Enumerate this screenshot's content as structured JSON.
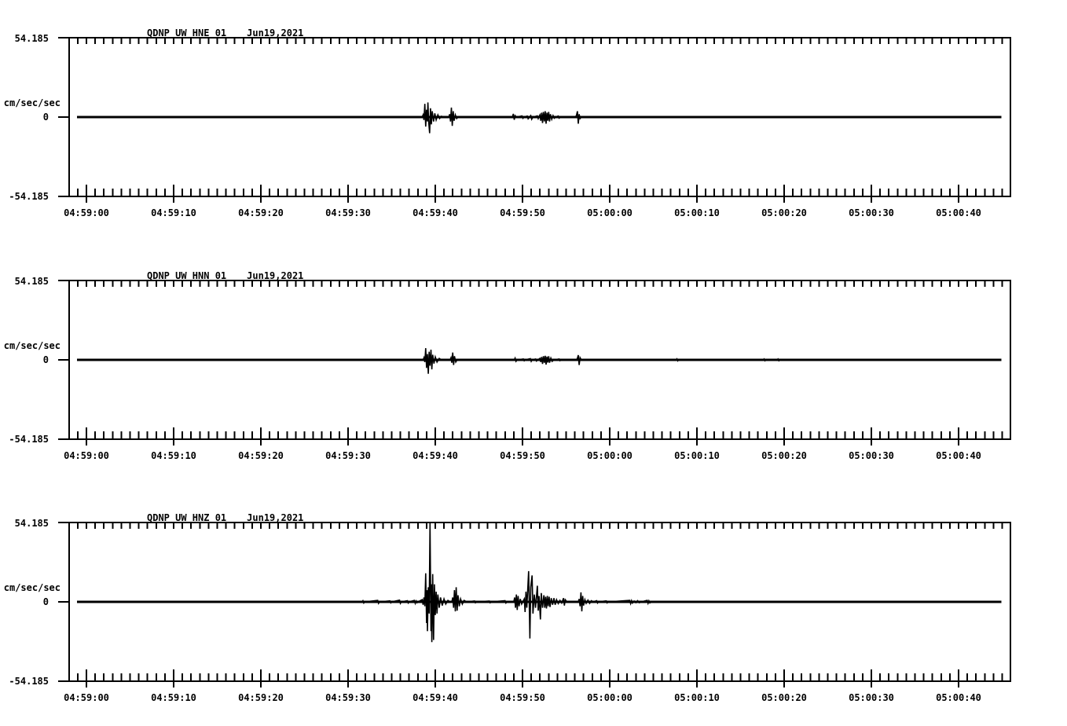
{
  "page": {
    "background": "#ffffff",
    "foreground": "#000000"
  },
  "chart_data": [
    {
      "type": "line",
      "station_channel": "QDNP_UW_HNE_01",
      "date": "Jun19,2021",
      "ylabel": "cm/sec/sec",
      "ymax_label": "54.185",
      "yzero_label": "0",
      "ymin_label": "-54.185",
      "ylim": [
        -54.185,
        54.185
      ],
      "xlim_seconds": [
        -1.98,
        105.9
      ],
      "minor_tick_seconds": 1,
      "xticks": [
        {
          "t": 0,
          "label": "04:59:00"
        },
        {
          "t": 10,
          "label": "04:59:10"
        },
        {
          "t": 20,
          "label": "04:59:20"
        },
        {
          "t": 30,
          "label": "04:59:30"
        },
        {
          "t": 40,
          "label": "04:59:40"
        },
        {
          "t": 50,
          "label": "04:59:50"
        },
        {
          "t": 60,
          "label": "05:00:00"
        },
        {
          "t": 70,
          "label": "05:00:10"
        },
        {
          "t": 80,
          "label": "05:00:20"
        },
        {
          "t": 90,
          "label": "05:00:30"
        },
        {
          "t": 100,
          "label": "05:00:40"
        }
      ],
      "series": [
        [
          -1.08,
          0
        ],
        [
          38.5,
          0
        ],
        [
          38.6,
          1.5
        ],
        [
          38.7,
          -2
        ],
        [
          38.8,
          9
        ],
        [
          38.9,
          -6.5
        ],
        [
          39.0,
          5
        ],
        [
          39.1,
          -3
        ],
        [
          39.15,
          10
        ],
        [
          39.25,
          -4
        ],
        [
          39.35,
          -11
        ],
        [
          39.45,
          6
        ],
        [
          39.55,
          -5
        ],
        [
          39.65,
          4
        ],
        [
          39.8,
          -3
        ],
        [
          39.95,
          2.5
        ],
        [
          40.1,
          -2
        ],
        [
          40.3,
          1.5
        ],
        [
          40.5,
          -1
        ],
        [
          40.7,
          0.6
        ],
        [
          41.0,
          0
        ],
        [
          41.55,
          0
        ],
        [
          41.65,
          2
        ],
        [
          41.75,
          -3
        ],
        [
          41.85,
          6.5
        ],
        [
          41.95,
          -6
        ],
        [
          42.05,
          4
        ],
        [
          42.15,
          -2.5
        ],
        [
          42.3,
          1.5
        ],
        [
          42.45,
          -1
        ],
        [
          42.6,
          0
        ],
        [
          48.85,
          0
        ],
        [
          48.95,
          2.2
        ],
        [
          49.05,
          -1.8
        ],
        [
          49.15,
          1
        ],
        [
          49.3,
          0
        ],
        [
          49.95,
          0.8
        ],
        [
          50.05,
          -0.8
        ],
        [
          50.15,
          0
        ],
        [
          50.55,
          0.7
        ],
        [
          50.65,
          -1.2
        ],
        [
          50.8,
          0
        ],
        [
          50.95,
          1
        ],
        [
          51.05,
          -1.5
        ],
        [
          51.2,
          0
        ],
        [
          51.7,
          0.8
        ],
        [
          51.8,
          -1
        ],
        [
          51.9,
          0.5
        ],
        [
          52.0,
          1.5
        ],
        [
          52.1,
          -2.5
        ],
        [
          52.2,
          3
        ],
        [
          52.3,
          -4
        ],
        [
          52.4,
          3.5
        ],
        [
          52.5,
          -3
        ],
        [
          52.6,
          4
        ],
        [
          52.7,
          -4.5
        ],
        [
          52.8,
          3
        ],
        [
          52.9,
          -2.5
        ],
        [
          53.0,
          3.5
        ],
        [
          53.1,
          -3
        ],
        [
          53.2,
          2
        ],
        [
          53.35,
          -1.5
        ],
        [
          53.5,
          1
        ],
        [
          53.65,
          -0.8
        ],
        [
          53.8,
          0
        ],
        [
          54.1,
          0.7
        ],
        [
          54.2,
          -0.7
        ],
        [
          54.35,
          0
        ],
        [
          56.1,
          0
        ],
        [
          56.2,
          1.5
        ],
        [
          56.3,
          4
        ],
        [
          56.4,
          -4.5
        ],
        [
          56.5,
          2
        ],
        [
          56.6,
          -1
        ],
        [
          56.75,
          0
        ],
        [
          104.9,
          0
        ]
      ]
    },
    {
      "type": "line",
      "station_channel": "QDNP_UW_HNN_01",
      "date": "Jun19,2021",
      "ylabel": "cm/sec/sec",
      "ymax_label": "54.185",
      "yzero_label": "0",
      "ymin_label": "-54.185",
      "ylim": [
        -54.185,
        54.185
      ],
      "xlim_seconds": [
        -1.98,
        105.9
      ],
      "minor_tick_seconds": 1,
      "xticks": [
        {
          "t": 0,
          "label": "04:59:00"
        },
        {
          "t": 10,
          "label": "04:59:10"
        },
        {
          "t": 20,
          "label": "04:59:20"
        },
        {
          "t": 30,
          "label": "04:59:30"
        },
        {
          "t": 40,
          "label": "04:59:40"
        },
        {
          "t": 50,
          "label": "04:59:50"
        },
        {
          "t": 60,
          "label": "05:00:00"
        },
        {
          "t": 70,
          "label": "05:00:10"
        },
        {
          "t": 80,
          "label": "05:00:20"
        },
        {
          "t": 90,
          "label": "05:00:30"
        },
        {
          "t": 100,
          "label": "05:00:40"
        }
      ],
      "series": [
        [
          -1.08,
          0
        ],
        [
          38.6,
          0
        ],
        [
          38.7,
          1.5
        ],
        [
          38.8,
          -1.5
        ],
        [
          38.9,
          8
        ],
        [
          39.0,
          -5.5
        ],
        [
          39.1,
          4
        ],
        [
          39.2,
          -9.5
        ],
        [
          39.3,
          5.5
        ],
        [
          39.4,
          -4
        ],
        [
          39.5,
          7
        ],
        [
          39.6,
          -6.5
        ],
        [
          39.7,
          3.5
        ],
        [
          39.85,
          -2.5
        ],
        [
          40.0,
          2
        ],
        [
          40.2,
          -1.5
        ],
        [
          40.45,
          1
        ],
        [
          40.7,
          0
        ],
        [
          41.7,
          0
        ],
        [
          41.8,
          1.5
        ],
        [
          41.9,
          -2
        ],
        [
          42.0,
          5
        ],
        [
          42.1,
          -3.5
        ],
        [
          42.2,
          2.5
        ],
        [
          42.35,
          -1.5
        ],
        [
          42.5,
          0
        ],
        [
          49.05,
          0
        ],
        [
          49.15,
          1.2
        ],
        [
          49.25,
          -1
        ],
        [
          49.4,
          0
        ],
        [
          50.1,
          0.6
        ],
        [
          50.2,
          -0.6
        ],
        [
          50.3,
          0
        ],
        [
          50.9,
          0.8
        ],
        [
          51.0,
          -1
        ],
        [
          51.1,
          0
        ],
        [
          51.5,
          0.6
        ],
        [
          51.6,
          -0.8
        ],
        [
          51.75,
          0
        ],
        [
          52.0,
          1
        ],
        [
          52.1,
          -1.5
        ],
        [
          52.2,
          2
        ],
        [
          52.3,
          -2.8
        ],
        [
          52.4,
          2.5
        ],
        [
          52.5,
          -2
        ],
        [
          52.6,
          2.8
        ],
        [
          52.7,
          -3.2
        ],
        [
          52.8,
          2.2
        ],
        [
          52.9,
          -1.8
        ],
        [
          53.0,
          2.5
        ],
        [
          53.1,
          -2
        ],
        [
          53.25,
          1.2
        ],
        [
          53.4,
          -1
        ],
        [
          53.6,
          0
        ],
        [
          54.2,
          0.6
        ],
        [
          54.3,
          -0.6
        ],
        [
          54.45,
          0
        ],
        [
          56.2,
          0
        ],
        [
          56.3,
          1.2
        ],
        [
          56.4,
          3.2
        ],
        [
          56.5,
          -3.5
        ],
        [
          56.6,
          1.5
        ],
        [
          56.75,
          0
        ],
        [
          67.6,
          0
        ],
        [
          67.7,
          0.7
        ],
        [
          67.8,
          -0.7
        ],
        [
          67.9,
          0
        ],
        [
          77.6,
          0
        ],
        [
          77.7,
          0.6
        ],
        [
          77.8,
          -0.6
        ],
        [
          77.9,
          0
        ],
        [
          79.2,
          0
        ],
        [
          79.3,
          0.6
        ],
        [
          79.4,
          -0.6
        ],
        [
          79.5,
          0
        ],
        [
          104.9,
          0
        ]
      ]
    },
    {
      "type": "line",
      "station_channel": "QDNP_UW_HNZ_01",
      "date": "Jun19,2021",
      "ylabel": "cm/sec/sec",
      "ymax_label": "54.185",
      "yzero_label": "0",
      "ymin_label": "-54.185",
      "ylim": [
        -54.185,
        54.185
      ],
      "xlim_seconds": [
        -1.98,
        105.9
      ],
      "minor_tick_seconds": 1,
      "xticks": [
        {
          "t": 0,
          "label": "04:59:00"
        },
        {
          "t": 10,
          "label": "04:59:10"
        },
        {
          "t": 20,
          "label": "04:59:20"
        },
        {
          "t": 30,
          "label": "04:59:30"
        },
        {
          "t": 40,
          "label": "04:59:40"
        },
        {
          "t": 50,
          "label": "04:59:50"
        },
        {
          "t": 60,
          "label": "05:00:00"
        },
        {
          "t": 70,
          "label": "05:00:10"
        },
        {
          "t": 80,
          "label": "05:00:20"
        },
        {
          "t": 90,
          "label": "05:00:30"
        },
        {
          "t": 100,
          "label": "05:00:40"
        }
      ],
      "series": [
        [
          -1.08,
          0
        ],
        [
          31.6,
          0
        ],
        [
          31.7,
          0.8
        ],
        [
          31.8,
          -0.8
        ],
        [
          31.9,
          0
        ],
        [
          33.4,
          1
        ],
        [
          33.5,
          -1
        ],
        [
          33.6,
          0
        ],
        [
          34.8,
          0.7
        ],
        [
          34.9,
          -0.7
        ],
        [
          35.0,
          0
        ],
        [
          35.9,
          1.2
        ],
        [
          36.0,
          -1
        ],
        [
          36.1,
          0
        ],
        [
          36.8,
          0.8
        ],
        [
          36.9,
          -0.8
        ],
        [
          37.0,
          0
        ],
        [
          37.6,
          1
        ],
        [
          37.7,
          -1
        ],
        [
          37.8,
          0.6
        ],
        [
          37.9,
          -0.6
        ],
        [
          38.0,
          0
        ],
        [
          38.5,
          1.5
        ],
        [
          38.6,
          -2
        ],
        [
          38.7,
          3
        ],
        [
          38.8,
          -3
        ],
        [
          38.9,
          19.5
        ],
        [
          39.0,
          -14.5
        ],
        [
          39.05,
          8
        ],
        [
          39.1,
          -20
        ],
        [
          39.2,
          10
        ],
        [
          39.3,
          -8
        ],
        [
          39.4,
          54
        ],
        [
          39.5,
          -20
        ],
        [
          39.55,
          12
        ],
        [
          39.6,
          -27.5
        ],
        [
          39.7,
          19
        ],
        [
          39.8,
          -26
        ],
        [
          39.9,
          12
        ],
        [
          40.0,
          -9
        ],
        [
          40.1,
          7
        ],
        [
          40.2,
          -8
        ],
        [
          40.3,
          5
        ],
        [
          40.45,
          -4
        ],
        [
          40.6,
          3
        ],
        [
          40.8,
          -2.5
        ],
        [
          41.0,
          2
        ],
        [
          41.2,
          -1.5
        ],
        [
          41.45,
          1
        ],
        [
          41.7,
          0
        ],
        [
          41.9,
          0
        ],
        [
          42.0,
          3
        ],
        [
          42.1,
          -4
        ],
        [
          42.2,
          8
        ],
        [
          42.3,
          -6.5
        ],
        [
          42.4,
          10
        ],
        [
          42.5,
          -6
        ],
        [
          42.6,
          4.5
        ],
        [
          42.75,
          -3
        ],
        [
          42.9,
          2
        ],
        [
          43.1,
          -1.5
        ],
        [
          43.3,
          1
        ],
        [
          43.6,
          0
        ],
        [
          44.5,
          0.6
        ],
        [
          44.6,
          -0.6
        ],
        [
          44.7,
          0
        ],
        [
          46.2,
          0.6
        ],
        [
          46.3,
          -0.6
        ],
        [
          46.4,
          0
        ],
        [
          48.0,
          0.8
        ],
        [
          48.1,
          -0.8
        ],
        [
          48.2,
          0
        ],
        [
          49.0,
          0
        ],
        [
          49.1,
          3
        ],
        [
          49.2,
          -4
        ],
        [
          49.3,
          5
        ],
        [
          49.4,
          -5.5
        ],
        [
          49.5,
          4
        ],
        [
          49.6,
          -3
        ],
        [
          49.75,
          2
        ],
        [
          49.9,
          -1.5
        ],
        [
          50.2,
          2
        ],
        [
          50.3,
          -7
        ],
        [
          50.4,
          7
        ],
        [
          50.5,
          -4
        ],
        [
          50.7,
          21
        ],
        [
          50.8,
          -10
        ],
        [
          50.85,
          -25
        ],
        [
          50.95,
          10
        ],
        [
          51.1,
          18
        ],
        [
          51.2,
          -8
        ],
        [
          51.35,
          5
        ],
        [
          51.5,
          -4
        ],
        [
          51.7,
          11
        ],
        [
          51.8,
          -6
        ],
        [
          51.9,
          4
        ],
        [
          52.05,
          -12
        ],
        [
          52.15,
          6
        ],
        [
          52.3,
          -4
        ],
        [
          52.45,
          4.5
        ],
        [
          52.55,
          -4
        ],
        [
          52.65,
          3.5
        ],
        [
          52.75,
          -4.5
        ],
        [
          52.85,
          4
        ],
        [
          52.95,
          -3
        ],
        [
          53.05,
          3.5
        ],
        [
          53.15,
          -3.5
        ],
        [
          53.3,
          2.5
        ],
        [
          53.45,
          -2
        ],
        [
          53.6,
          2.5
        ],
        [
          53.75,
          -2
        ],
        [
          53.9,
          1.5
        ],
        [
          54.1,
          -1.2
        ],
        [
          54.3,
          1
        ],
        [
          54.5,
          -0.8
        ],
        [
          54.7,
          2.5
        ],
        [
          54.8,
          -2.5
        ],
        [
          54.9,
          1.5
        ],
        [
          55.1,
          0
        ],
        [
          56.4,
          0
        ],
        [
          56.5,
          2
        ],
        [
          56.6,
          -3
        ],
        [
          56.7,
          6.5
        ],
        [
          56.8,
          -6.5
        ],
        [
          56.9,
          4
        ],
        [
          57.0,
          -2.5
        ],
        [
          57.15,
          1.5
        ],
        [
          57.3,
          -1
        ],
        [
          57.5,
          1.2
        ],
        [
          57.7,
          -1
        ],
        [
          57.9,
          0.8
        ],
        [
          58.1,
          0
        ],
        [
          58.5,
          0.8
        ],
        [
          58.6,
          -0.8
        ],
        [
          58.7,
          0
        ],
        [
          59.6,
          0.7
        ],
        [
          59.7,
          -0.7
        ],
        [
          59.8,
          0
        ],
        [
          62.3,
          1
        ],
        [
          62.4,
          -1.2
        ],
        [
          62.5,
          0.8
        ],
        [
          62.6,
          -0.8
        ],
        [
          62.8,
          0.6
        ],
        [
          63.0,
          -0.6
        ],
        [
          63.2,
          0.8
        ],
        [
          63.4,
          -0.6
        ],
        [
          63.6,
          0
        ],
        [
          64.3,
          1
        ],
        [
          64.4,
          -1
        ],
        [
          64.5,
          0.7
        ],
        [
          64.6,
          -0.7
        ],
        [
          64.8,
          0
        ],
        [
          104.9,
          0
        ]
      ]
    }
  ]
}
